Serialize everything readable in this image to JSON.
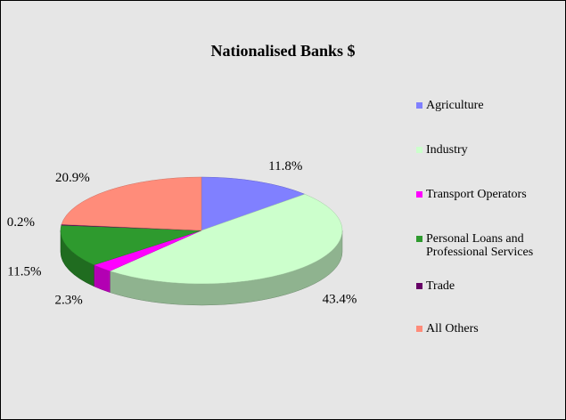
{
  "chart_data": {
    "type": "pie",
    "title": "Nationalised Banks $",
    "categories": [
      "Agriculture",
      "Industry",
      "Transport Operators",
      "Personal Loans and Professional Services",
      "Trade",
      "All Others"
    ],
    "values": [
      11.8,
      43.4,
      2.3,
      11.5,
      0.2,
      20.9
    ],
    "value_labels": [
      "11.8%",
      "43.4%",
      "2.3%",
      "11.5%",
      "0.2%",
      "20.9%"
    ],
    "colors": [
      "#8080ff",
      "#ccffcc",
      "#ff00ff",
      "#2e9a2e",
      "#660066",
      "#ff8c7a"
    ],
    "legend": "right"
  }
}
